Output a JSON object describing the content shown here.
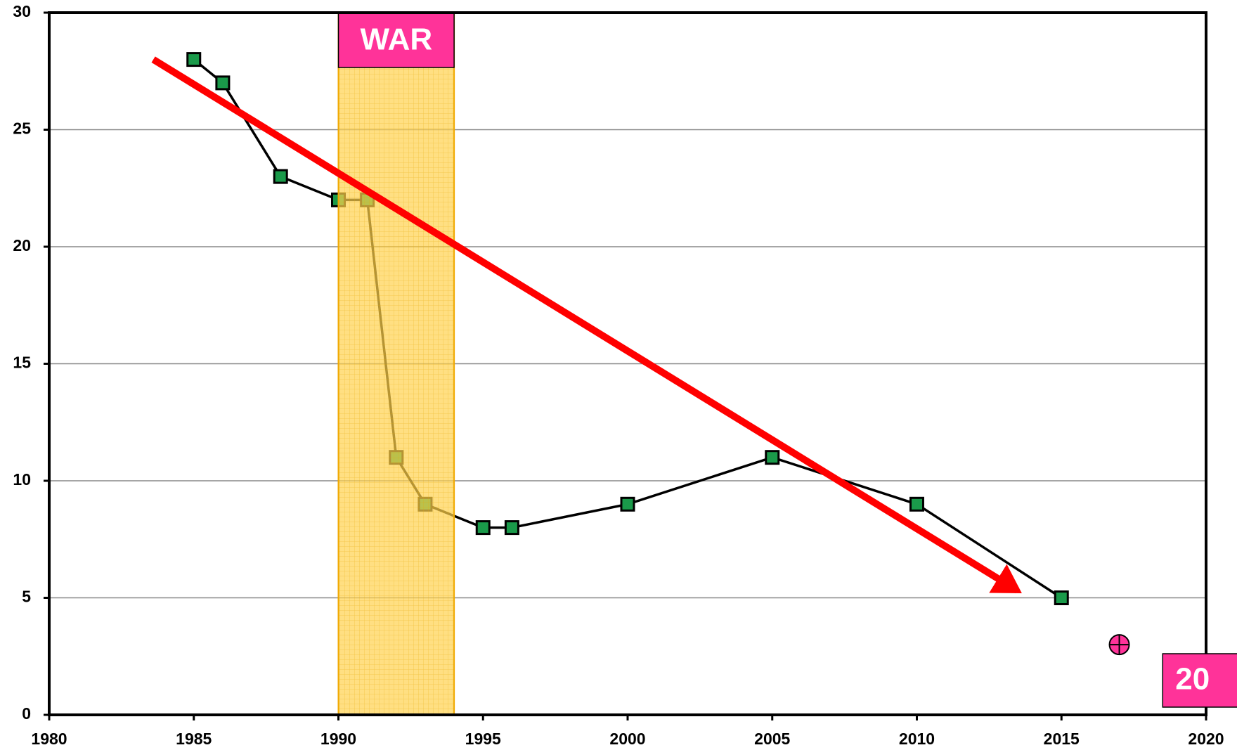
{
  "chart_data": {
    "type": "line",
    "x": [
      1985,
      1986,
      1988,
      1990,
      1991,
      1992,
      1993,
      1995,
      1996,
      2000,
      2005,
      2010,
      2015
    ],
    "series": [
      {
        "name": null,
        "color": "#000000",
        "marker_color": "#1a9a4a",
        "values": [
          28,
          27,
          23,
          22,
          22,
          11,
          9,
          8,
          8,
          9,
          11,
          9,
          5
        ]
      }
    ],
    "xlim": [
      1980,
      2020
    ],
    "xticks": [
      1980,
      1985,
      1990,
      1995,
      2000,
      2005,
      2010,
      2015,
      2020
    ],
    "ylim": [
      0,
      30
    ],
    "yticks": [
      0,
      5,
      10,
      15,
      20,
      25,
      30
    ],
    "grid": true,
    "shaded_period": {
      "x": [
        1990,
        1994
      ],
      "label": "WAR",
      "color": "#ffd24d"
    },
    "trend_arrow": {
      "x": [
        1983.6,
        2014
      ],
      "y": [
        28,
        4.9
      ],
      "color": "#ff0000"
    },
    "highlight_point": {
      "x": 2017,
      "y": 3,
      "color": "#ff3399"
    },
    "corner_label": {
      "text": "20",
      "x": 2018.5,
      "color": "#ff3399"
    }
  }
}
